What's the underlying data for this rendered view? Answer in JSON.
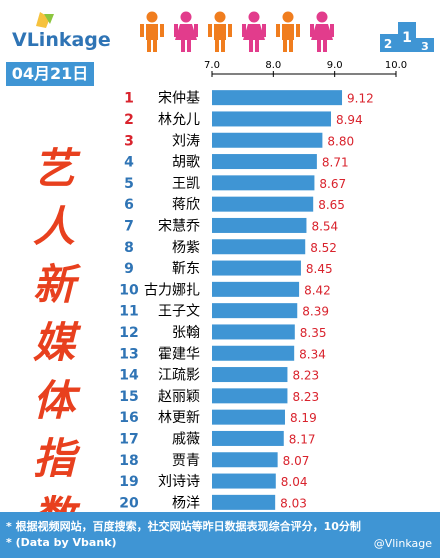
{
  "header": {
    "logo_text": "VLinkage",
    "date": "04月21日",
    "side_title": [
      "艺",
      "人",
      "新",
      "媒",
      "体",
      "指",
      "数"
    ]
  },
  "chart_data": {
    "type": "bar",
    "orientation": "horizontal",
    "xlim": [
      7.0,
      10.0
    ],
    "xticks": [
      "7.0",
      "8.0",
      "9.0",
      "10.0"
    ],
    "bar_color": "#3f95d4",
    "rank_color_top3": "#d9232d",
    "rank_color_rest": "#2f74b5",
    "value_color": "#d9232d",
    "ranks": [
      "1",
      "2",
      "3",
      "4",
      "5",
      "6",
      "7",
      "8",
      "9",
      "10",
      "11",
      "12",
      "13",
      "14",
      "15",
      "16",
      "17",
      "18",
      "19",
      "20"
    ],
    "categories": [
      "宋仲基",
      "林允儿",
      "刘涛",
      "胡歌",
      "王凯",
      "蒋欣",
      "宋慧乔",
      "杨紫",
      "靳东",
      "古力娜扎",
      "王子文",
      "张翰",
      "霍建华",
      "江疏影",
      "赵丽颖",
      "林更新",
      "戚薇",
      "贾青",
      "刘诗诗",
      "杨洋"
    ],
    "values": [
      9.12,
      8.94,
      8.8,
      8.71,
      8.67,
      8.65,
      8.54,
      8.52,
      8.45,
      8.42,
      8.39,
      8.35,
      8.34,
      8.23,
      8.23,
      8.19,
      8.17,
      8.07,
      8.04,
      8.03
    ],
    "value_labels": [
      "9.12",
      "8.94",
      "8.80",
      "8.71",
      "8.67",
      "8.65",
      "8.54",
      "8.52",
      "8.45",
      "8.42",
      "8.39",
      "8.35",
      "8.34",
      "8.23",
      "8.23",
      "8.19",
      "8.17",
      "8.07",
      "8.04",
      "8.03"
    ]
  },
  "footer": {
    "note": "* 根据视频网站，百度搜索，社交网站等昨日数据表现综合评分，10分制",
    "source": "* (Data by Vbank)",
    "watermark": "@Vlinkage"
  },
  "colors": {
    "figure_orange": "#f07d1e",
    "figure_pink": "#e23c8c",
    "podium_blue": "#3f95d4"
  }
}
